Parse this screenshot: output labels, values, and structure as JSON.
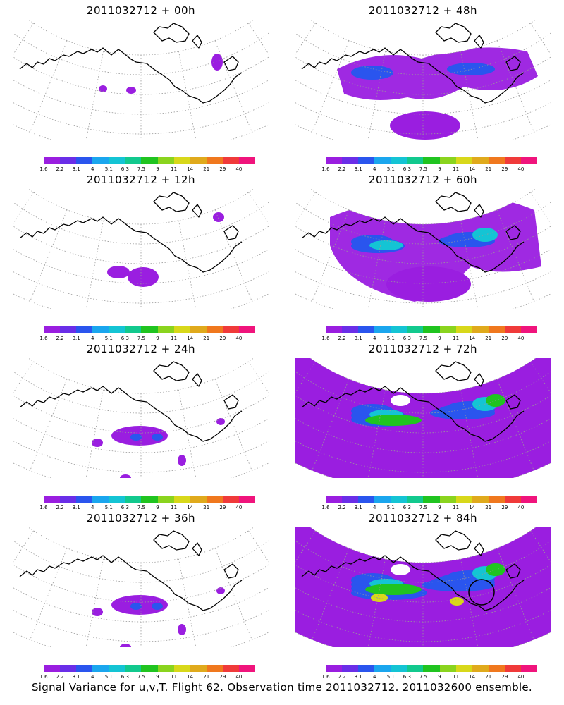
{
  "panels": [
    {
      "title": "2011032712 + 00h",
      "level": 0
    },
    {
      "title": "2011032712 + 48h",
      "level": 3
    },
    {
      "title": "2011032712 + 12h",
      "level": 1
    },
    {
      "title": "2011032712 + 60h",
      "level": 4
    },
    {
      "title": "2011032712 + 24h",
      "level": 2
    },
    {
      "title": "2011032712 + 72h",
      "level": 5
    },
    {
      "title": "2011032712 + 36h",
      "level": 2
    },
    {
      "title": "2011032712 + 84h",
      "level": 6
    }
  ],
  "colorbar": {
    "labels": [
      "1.6",
      "2.2",
      "3.1",
      "4",
      "5.1",
      "6.3",
      "7.5",
      "9",
      "11",
      "14",
      "21",
      "29",
      "40"
    ],
    "colors": [
      "#9a1ee0",
      "#6a2ee8",
      "#2a55ee",
      "#1aa6ee",
      "#14c4d4",
      "#12c98e",
      "#20c420",
      "#8ad41e",
      "#d8d81a",
      "#e0aa1c",
      "#f0781e",
      "#f03a3a",
      "#f0147c"
    ]
  },
  "caption": "Signal Variance for u,v,T. Flight 62. Observation time 2011032712. 2011032600 ensemble.",
  "colors": {
    "purple": "#9a1ee0",
    "blue": "#2a55ee",
    "cyan": "#14c4d4",
    "green": "#20c420",
    "yellow": "#d8d81a",
    "coast": "#000000",
    "grid": "#9a9a9a"
  }
}
